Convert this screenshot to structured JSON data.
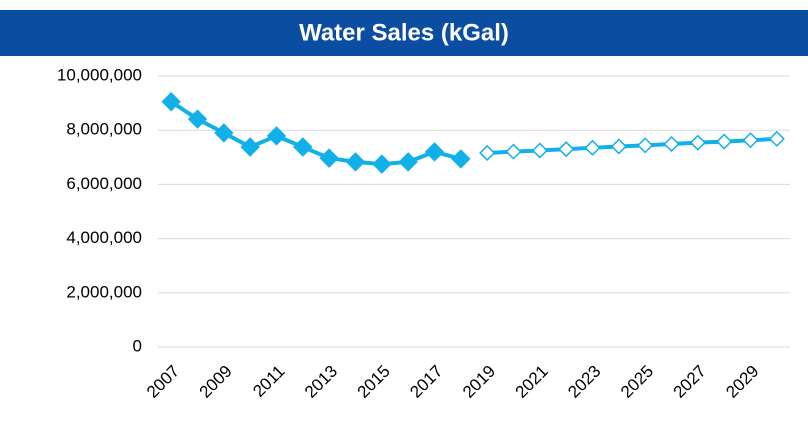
{
  "chart_data": {
    "type": "line",
    "title": "Water Sales (kGal)",
    "x": [
      2007,
      2008,
      2009,
      2010,
      2011,
      2012,
      2013,
      2014,
      2015,
      2016,
      2017,
      2018,
      2019,
      2020,
      2021,
      2022,
      2023,
      2024,
      2025,
      2026,
      2027,
      2028,
      2029,
      2030
    ],
    "xlim": [
      2006.5,
      2030.5
    ],
    "xticks": [
      2007,
      2009,
      2011,
      2013,
      2015,
      2017,
      2019,
      2021,
      2023,
      2025,
      2027,
      2029
    ],
    "ylim": [
      0,
      10000000
    ],
    "yticks": [
      0,
      {
        "value": 2000000,
        "label": "2,000,000"
      },
      {
        "value": 4000000,
        "label": "4,000,000"
      },
      {
        "value": 6000000,
        "label": "6,000,000"
      },
      {
        "value": 8000000,
        "label": "8,000,000"
      },
      {
        "value": 10000000,
        "label": "10,000,000"
      }
    ],
    "grid": true,
    "series": [
      {
        "color": "#12b0e8",
        "marker": "diamond",
        "marker_filled": true,
        "values": [
          9050000,
          8410000,
          7900000,
          7380000,
          7790000,
          7380000,
          6970000,
          6830000,
          6750000,
          6830000,
          7200000,
          6940000,
          null,
          null,
          null,
          null,
          null,
          null,
          null,
          null,
          null,
          null,
          null,
          null
        ]
      },
      {
        "color": "#12b0e8",
        "marker": "diamond",
        "marker_filled": false,
        "values": [
          null,
          null,
          null,
          null,
          null,
          null,
          null,
          null,
          null,
          null,
          null,
          null,
          7160000,
          7210000,
          7250000,
          7300000,
          7350000,
          7400000,
          7440000,
          7490000,
          7540000,
          7580000,
          7630000,
          7680000
        ]
      }
    ]
  }
}
